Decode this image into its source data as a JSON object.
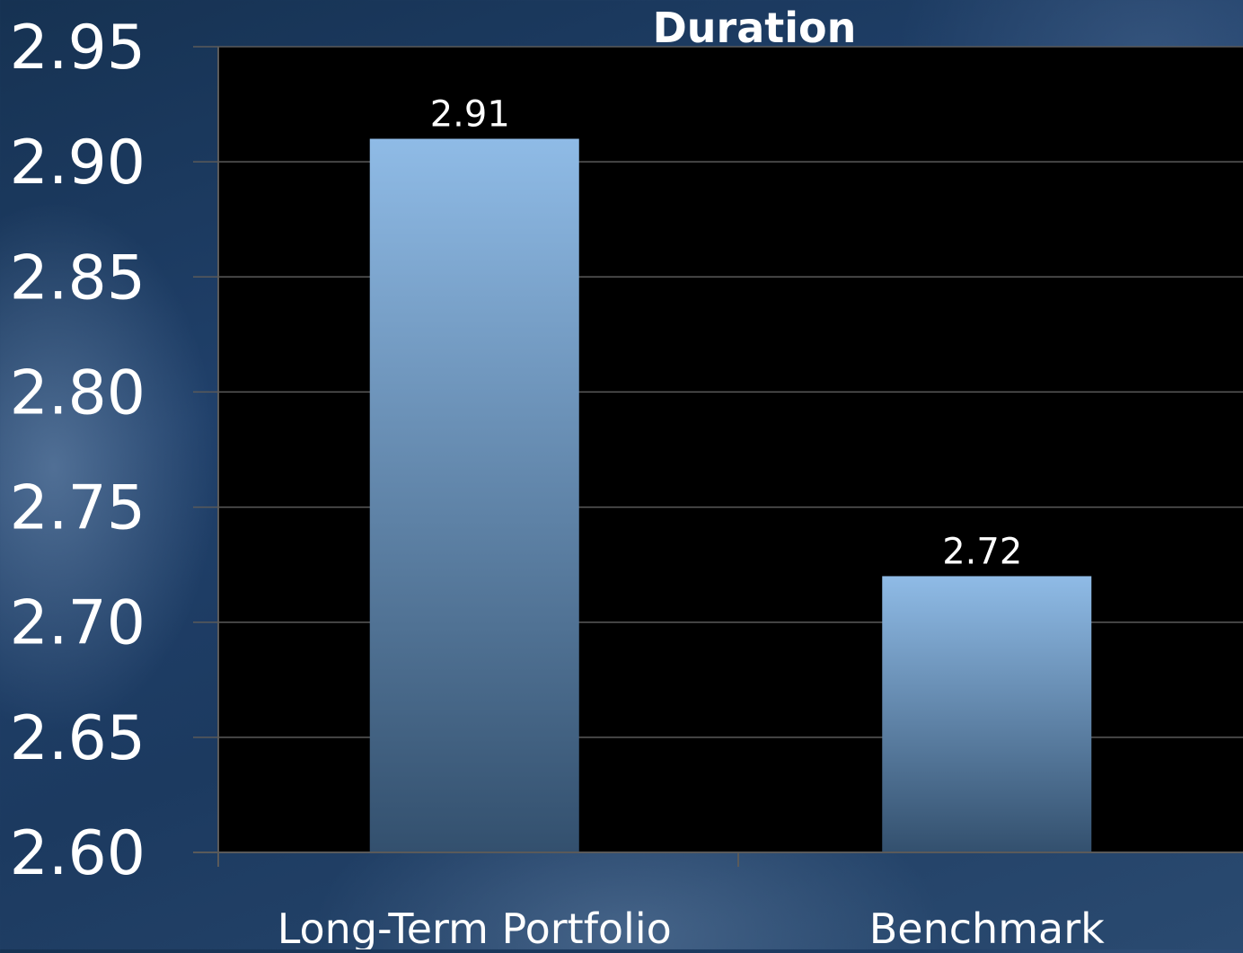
{
  "chart_data": {
    "type": "bar",
    "title": "Duration",
    "categories": [
      "Long-Term Portfolio",
      "Benchmark"
    ],
    "values": [
      2.91,
      2.72
    ],
    "data_labels": [
      "2.91",
      "2.72"
    ],
    "y_ticks": [
      "2.60",
      "2.65",
      "2.70",
      "2.75",
      "2.80",
      "2.85",
      "2.90",
      "2.95"
    ],
    "ylim": [
      2.6,
      2.95
    ],
    "xlabel": "",
    "ylabel": "",
    "grid": true,
    "legend": "none",
    "colors": {
      "plot_background": "#000000",
      "bar_top": "#8fbbe6",
      "bar_bottom": "#33506e",
      "gridline": "#5a5a5a",
      "text": "#ffffff"
    }
  }
}
